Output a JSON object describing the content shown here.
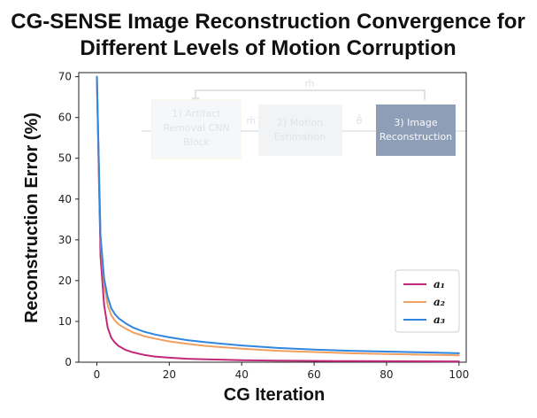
{
  "chart_data": {
    "type": "line",
    "title_line1": "CG-SENSE Image Reconstruction Convergence for",
    "title_line2": "Different Levels of Motion Corruption",
    "xlabel": "CG Iteration",
    "ylabel": "Reconstruction Error  (%)",
    "xlim": [
      -5,
      102
    ],
    "ylim": [
      0,
      71
    ],
    "xticks": [
      0,
      20,
      40,
      60,
      80,
      100
    ],
    "yticks": [
      0,
      10,
      20,
      30,
      40,
      50,
      60,
      70
    ],
    "grid": false,
    "legend_position": "lower-right",
    "series": [
      {
        "name": "a₁",
        "color": "#c0287a",
        "x": [
          0,
          1,
          2,
          3,
          4,
          5,
          6,
          8,
          10,
          13,
          16,
          20,
          25,
          30,
          40,
          50,
          60,
          70,
          80,
          90,
          100
        ],
        "y": [
          70,
          26,
          14,
          8.5,
          6,
          4.8,
          4,
          3,
          2.4,
          1.8,
          1.4,
          1.1,
          0.85,
          0.7,
          0.5,
          0.4,
          0.32,
          0.27,
          0.24,
          0.22,
          0.2
        ]
      },
      {
        "name": "a₂",
        "color": "#f0a060",
        "x": [
          0,
          1,
          2,
          3,
          4,
          5,
          6,
          8,
          10,
          13,
          16,
          20,
          25,
          30,
          40,
          50,
          60,
          70,
          80,
          90,
          100
        ],
        "y": [
          70,
          30,
          19,
          14,
          11.5,
          10.2,
          9.3,
          8.2,
          7.3,
          6.4,
          5.8,
          5.1,
          4.5,
          4,
          3.3,
          2.8,
          2.5,
          2.2,
          2,
          1.85,
          1.7
        ]
      },
      {
        "name": "a₃",
        "color": "#2f86e0",
        "x": [
          0,
          1,
          2,
          3,
          4,
          5,
          6,
          8,
          10,
          13,
          16,
          20,
          25,
          30,
          40,
          50,
          60,
          70,
          80,
          90,
          100
        ],
        "y": [
          70,
          31,
          20.5,
          16,
          13.2,
          11.8,
          10.8,
          9.5,
          8.5,
          7.5,
          6.8,
          6.1,
          5.4,
          4.9,
          4.1,
          3.5,
          3.1,
          2.8,
          2.6,
          2.4,
          2.2
        ]
      }
    ]
  },
  "inset": {
    "feedback_label": "m̂",
    "box1_line1": "1) Artifact",
    "box1_line2": "Removal CNN",
    "box1_line3": "Block",
    "arrow1_label": "m̂′",
    "box2_line1": "2) Motion",
    "box2_line2": "Estimation",
    "arrow2_label": "θ̂",
    "box3_line1": "3) Image",
    "box3_line2": "Reconstruction"
  }
}
